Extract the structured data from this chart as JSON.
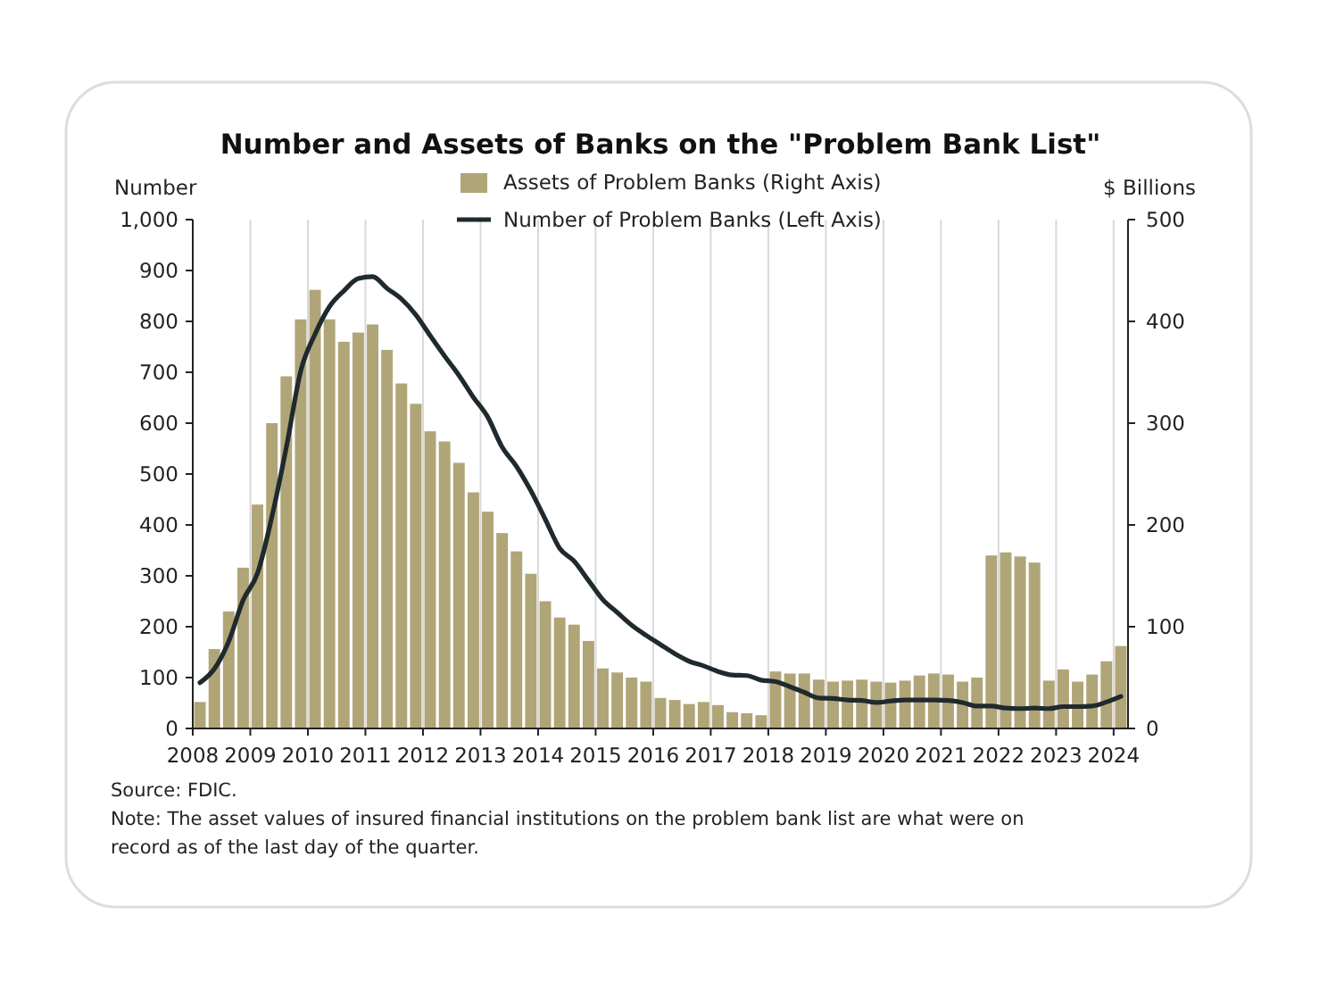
{
  "chart_data": {
    "type": "bar",
    "title": "Number and Assets of Banks on the \"Problem Bank List\"",
    "ylabel": "Number",
    "y2label": "$ Billions",
    "x": [
      2008.125,
      2008.375,
      2008.625,
      2008.875,
      2009.125,
      2009.375,
      2009.625,
      2009.875,
      2010.125,
      2010.375,
      2010.625,
      2010.875,
      2011.125,
      2011.375,
      2011.625,
      2011.875,
      2012.125,
      2012.375,
      2012.625,
      2012.875,
      2013.125,
      2013.375,
      2013.625,
      2013.875,
      2014.125,
      2014.375,
      2014.625,
      2014.875,
      2015.125,
      2015.375,
      2015.625,
      2015.875,
      2016.125,
      2016.375,
      2016.625,
      2016.875,
      2017.125,
      2017.375,
      2017.625,
      2017.875,
      2018.125,
      2018.375,
      2018.625,
      2018.875,
      2019.125,
      2019.375,
      2019.625,
      2019.875,
      2020.125,
      2020.375,
      2020.625,
      2020.875,
      2021.125,
      2021.375,
      2021.625,
      2021.875,
      2022.125,
      2022.375,
      2022.625,
      2022.875,
      2023.125,
      2023.375,
      2023.625,
      2023.875,
      2024.125
    ],
    "series": [
      {
        "name": "Assets of Problem Banks (Right Axis)",
        "axis": "y2",
        "color": "#b0a577",
        "values": [
          26,
          78,
          115,
          158,
          220,
          300,
          346,
          402,
          431,
          402,
          380,
          389,
          397,
          372,
          339,
          319,
          292,
          282,
          261,
          232,
          213,
          192,
          174,
          152,
          125,
          109,
          102,
          86,
          59,
          55,
          50,
          46,
          30,
          28,
          24,
          26,
          23,
          16,
          15,
          13,
          56,
          54,
          54,
          48,
          46,
          47,
          48,
          46,
          45,
          47,
          52,
          54,
          53,
          46,
          50,
          170,
          173,
          169,
          163,
          47,
          58,
          46,
          53,
          66,
          81
        ]
      },
      {
        "name": "Number of Problem Banks (Left Axis)",
        "type": "line",
        "color": "#1f2a2e",
        "values": [
          90,
          117,
          171,
          252,
          305,
          416,
          552,
          702,
          775,
          829,
          860,
          884,
          888,
          865,
          844,
          813,
          772,
          732,
          694,
          651,
          612,
          553,
          515,
          467,
          411,
          354,
          329,
          291,
          253,
          228,
          203,
          183,
          165,
          147,
          132,
          123,
          112,
          105,
          104,
          95,
          92,
          82,
          71,
          60,
          59,
          56,
          55,
          51,
          54,
          56,
          56,
          56,
          55,
          51,
          44,
          44,
          40,
          39,
          40,
          39,
          43,
          43,
          44,
          52,
          63
        ]
      }
    ],
    "xlim": [
      2008,
      2024.25
    ],
    "xticks": [
      2008,
      2009,
      2010,
      2011,
      2012,
      2013,
      2014,
      2015,
      2016,
      2017,
      2018,
      2019,
      2020,
      2021,
      2022,
      2023,
      2024
    ],
    "ylim": [
      0,
      1000
    ],
    "yticks": [
      0,
      100,
      200,
      300,
      400,
      500,
      600,
      700,
      800,
      900,
      {
        "value": 1000,
        "label": "1,000"
      }
    ],
    "y2lim": [
      0,
      500
    ],
    "y2ticks": [
      0,
      100,
      200,
      300,
      400,
      500
    ],
    "grid": "x",
    "legend": "top",
    "line_style": "solid",
    "marker": "none",
    "annotations": [
      "Source: FDIC.",
      "Note: The asset values of insured financial institutions on the problem bank list are what were on record as of the last day of the quarter."
    ]
  }
}
